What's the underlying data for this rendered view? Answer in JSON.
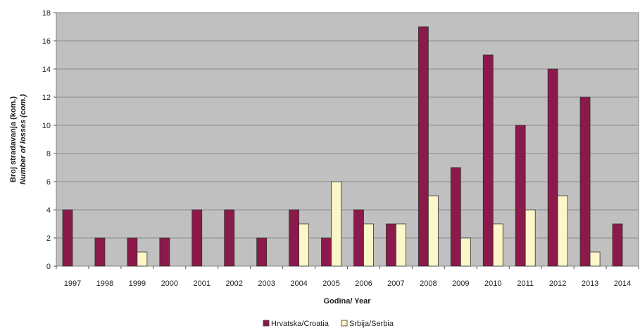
{
  "chart_data": {
    "type": "bar",
    "categories": [
      "1997",
      "1998",
      "1999",
      "2000",
      "2001",
      "2002",
      "2003",
      "2004",
      "2005",
      "2006",
      "2007",
      "2008",
      "2009",
      "2010",
      "2011",
      "2012",
      "2013",
      "2014"
    ],
    "series": [
      {
        "name": "Hrvatska/Croatia",
        "values": [
          4,
          2,
          2,
          2,
          4,
          4,
          2,
          4,
          2,
          4,
          3,
          17,
          7,
          15,
          10,
          14,
          12,
          3
        ],
        "color": "#8b1a4a"
      },
      {
        "name": "Srbija/Serbia",
        "values": [
          null,
          null,
          1,
          null,
          null,
          null,
          null,
          3,
          6,
          3,
          3,
          5,
          2,
          3,
          4,
          5,
          1,
          null
        ],
        "color": "#fdf6c8"
      }
    ],
    "xlabel": "Godina/ Year",
    "ylabel": [
      "Broj stradavanja (kom.)",
      "Number of losses (com.)"
    ],
    "ylim": [
      0,
      18
    ],
    "yticks": [
      0,
      2,
      4,
      6,
      8,
      10,
      12,
      14,
      16,
      18
    ],
    "grid": true,
    "plot_background": "#c0c0c0",
    "legend_position": "bottom"
  }
}
